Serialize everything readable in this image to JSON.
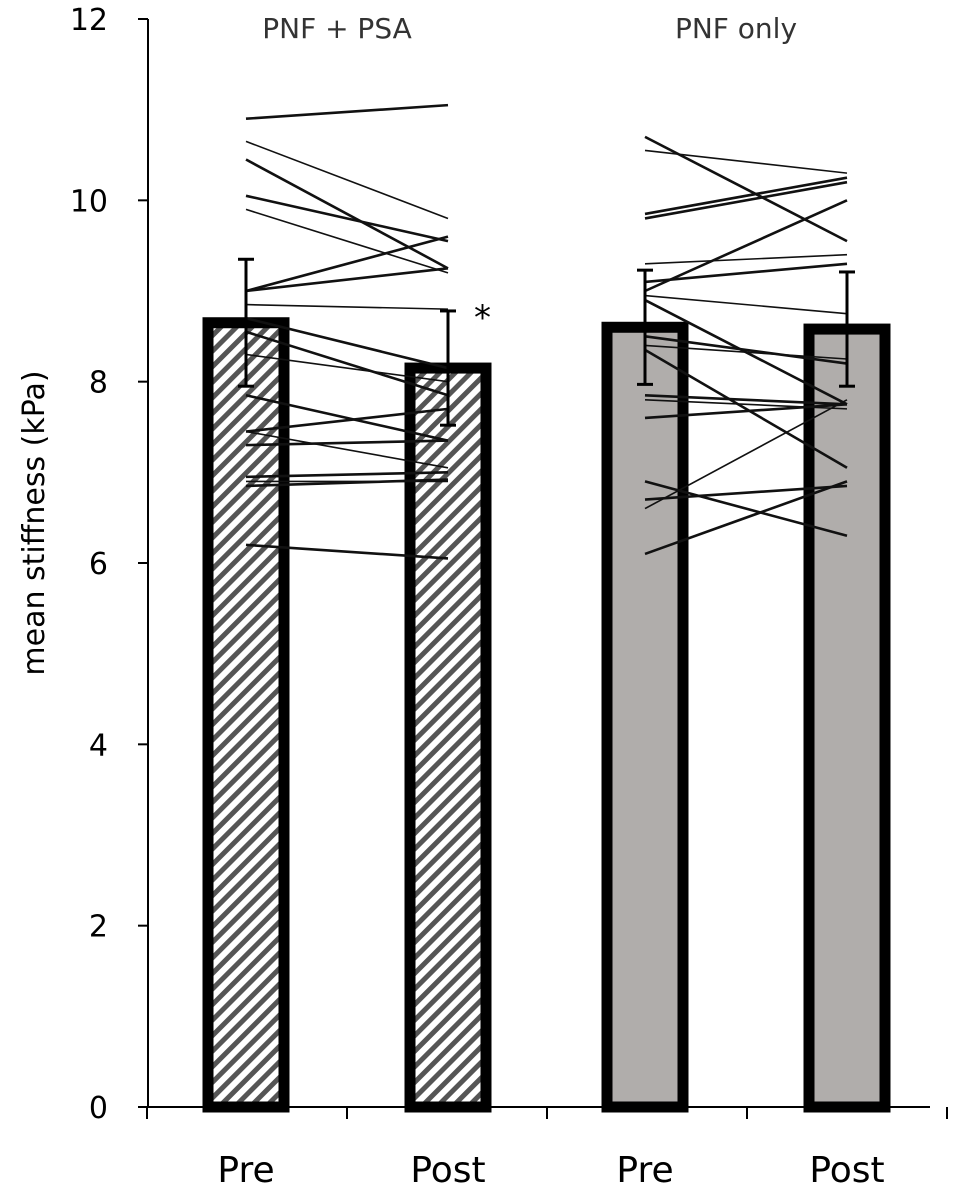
{
  "chart_data": {
    "type": "bar",
    "ylabel": "mean stiffness (kPa)",
    "xlabel": "",
    "ylim": [
      0,
      12
    ],
    "yticks": [
      "0",
      "2",
      "4",
      "6",
      "8",
      "10",
      "12"
    ],
    "grid": false,
    "groups": [
      {
        "label": "PNF + PSA",
        "fill": "hatched",
        "bars": [
          {
            "category": "Pre",
            "value": 8.65,
            "error": 0.7
          },
          {
            "category": "Post",
            "value": 8.15,
            "error": 0.63,
            "annotation": "*"
          }
        ],
        "participants": [
          [
            10.9,
            11.05
          ],
          [
            10.65,
            9.8
          ],
          [
            10.45,
            9.25
          ],
          [
            10.05,
            9.55
          ],
          [
            9.9,
            9.2
          ],
          [
            9.0,
            9.6
          ],
          [
            9.0,
            9.25
          ],
          [
            8.85,
            8.8
          ],
          [
            8.7,
            8.15
          ],
          [
            8.55,
            7.85
          ],
          [
            8.3,
            8.0
          ],
          [
            7.85,
            7.35
          ],
          [
            7.45,
            7.7
          ],
          [
            7.45,
            7.05
          ],
          [
            7.3,
            7.35
          ],
          [
            6.95,
            7.0
          ],
          [
            6.9,
            6.9
          ],
          [
            6.85,
            6.92
          ],
          [
            6.2,
            6.05
          ]
        ]
      },
      {
        "label": "PNF only",
        "fill": "#b0adab",
        "bars": [
          {
            "category": "Pre",
            "value": 8.6,
            "error": 0.63
          },
          {
            "category": "Post",
            "value": 8.58,
            "error": 0.63
          }
        ],
        "participants": [
          [
            10.7,
            9.55
          ],
          [
            10.55,
            10.3
          ],
          [
            9.85,
            10.25
          ],
          [
            9.8,
            10.2
          ],
          [
            9.3,
            9.4
          ],
          [
            9.1,
            9.3
          ],
          [
            9.0,
            10.0
          ],
          [
            8.95,
            8.75
          ],
          [
            8.9,
            7.75
          ],
          [
            8.5,
            8.2
          ],
          [
            8.4,
            8.25
          ],
          [
            8.35,
            7.05
          ],
          [
            7.85,
            7.75
          ],
          [
            7.8,
            7.7
          ],
          [
            7.6,
            7.75
          ],
          [
            6.9,
            6.3
          ],
          [
            6.6,
            7.8
          ],
          [
            6.1,
            6.9
          ],
          [
            6.7,
            6.85
          ]
        ]
      }
    ]
  }
}
